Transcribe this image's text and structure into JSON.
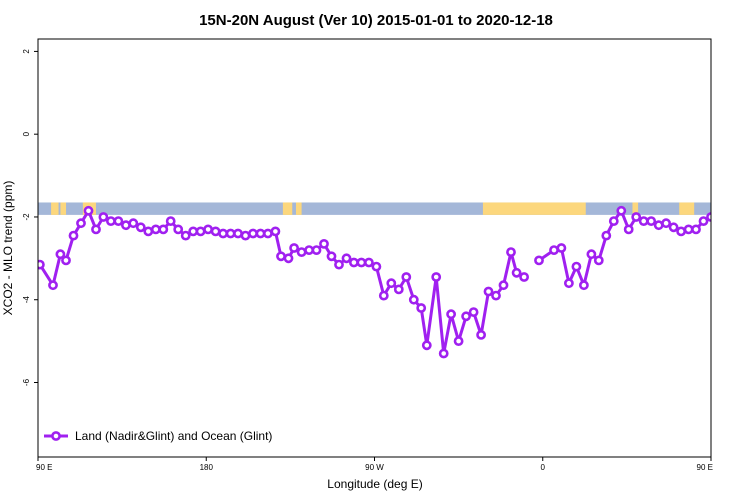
{
  "chart_data": {
    "type": "line",
    "title": "15N-20N August (Ver 10)   2015-01-01 to 2020-12-18",
    "xlabel": "Longitude (deg E)",
    "ylabel": "XCO2 - MLO trend (ppm)",
    "xlim": [
      90,
      450
    ],
    "ylim": [
      -7.8,
      2.3
    ],
    "x_ticks": [
      {
        "value": 90,
        "label": "90 E"
      },
      {
        "value": 180,
        "label": "180"
      },
      {
        "value": 270,
        "label": "90 W"
      },
      {
        "value": 360,
        "label": "0"
      },
      {
        "value": 450,
        "label": "90 E"
      },
      {
        "value": 540,
        "label": "180"
      }
    ],
    "y_ticks": [
      {
        "value": 2,
        "label": "2"
      },
      {
        "value": 0,
        "label": "0"
      },
      {
        "value": -2,
        "label": "-2"
      },
      {
        "value": -4,
        "label": "-4"
      },
      {
        "value": -6,
        "label": "-6"
      }
    ],
    "land_band": {
      "y_range": [
        -1.95,
        -1.65
      ],
      "ocean_color": "#a4b7d8",
      "land_color": "#fcd77d",
      "land_spans": [
        [
          97,
          101
        ],
        [
          102,
          105
        ],
        [
          114,
          118
        ],
        [
          115,
          121
        ],
        [
          221,
          224
        ],
        [
          223,
          226
        ],
        [
          228,
          231
        ],
        [
          328,
          383
        ],
        [
          374,
          381
        ],
        [
          408,
          411
        ],
        [
          433,
          441
        ],
        [
          450,
          458
        ],
        [
          468,
          472
        ],
        [
          484,
          486
        ]
      ]
    },
    "series": [
      {
        "name": "Land (Nadir&Glint) and Ocean (Glint)",
        "color": "#a020f0",
        "points": [
          [
            88,
            -3.2
          ],
          [
            91,
            -3.15
          ],
          [
            98,
            -3.65
          ],
          [
            102,
            -2.9
          ],
          [
            105,
            -3.05
          ],
          [
            109,
            -2.45
          ],
          [
            113,
            -2.15
          ],
          [
            117,
            -1.85
          ],
          [
            121,
            -2.3
          ],
          [
            125,
            -2.0
          ],
          [
            129,
            -2.1
          ],
          [
            133,
            -2.1
          ],
          [
            137,
            -2.2
          ],
          [
            141,
            -2.15
          ],
          [
            145,
            -2.25
          ],
          [
            149,
            -2.35
          ],
          [
            153,
            -2.3
          ],
          [
            157,
            -2.3
          ],
          [
            161,
            -2.1
          ],
          [
            165,
            -2.3
          ],
          [
            169,
            -2.45
          ],
          [
            173,
            -2.35
          ],
          [
            177,
            -2.35
          ],
          [
            181,
            -2.3
          ],
          [
            185,
            -2.35
          ],
          [
            189,
            -2.4
          ],
          [
            193,
            -2.4
          ],
          [
            197,
            -2.4
          ],
          [
            201,
            -2.45
          ],
          [
            205,
            -2.4
          ],
          [
            209,
            -2.4
          ],
          [
            213,
            -2.4
          ],
          [
            217,
            -2.35
          ],
          [
            220,
            -2.95
          ],
          [
            224,
            -3.0
          ],
          [
            227,
            -2.75
          ],
          [
            231,
            -2.85
          ],
          [
            235,
            -2.8
          ],
          [
            239,
            -2.8
          ],
          [
            243,
            -2.65
          ],
          [
            247,
            -2.95
          ],
          [
            251,
            -3.15
          ],
          [
            255,
            -3.0
          ],
          [
            259,
            -3.1
          ],
          [
            263,
            -3.1
          ],
          [
            267,
            -3.1
          ],
          [
            271,
            -3.2
          ],
          [
            275,
            -3.9
          ],
          [
            279,
            -3.6
          ],
          [
            283,
            -3.75
          ],
          [
            287,
            -3.45
          ],
          [
            291,
            -4.0
          ],
          [
            295,
            -4.2
          ],
          [
            298,
            -5.1
          ],
          [
            303,
            -3.45
          ],
          [
            307,
            -5.3
          ],
          [
            311,
            -4.35
          ],
          [
            315,
            -5.0
          ],
          [
            319,
            -4.4
          ],
          [
            323,
            -4.3
          ],
          [
            327,
            -4.85
          ],
          [
            331,
            -3.8
          ],
          [
            335,
            -3.9
          ],
          [
            339,
            -3.65
          ],
          [
            343,
            -2.85
          ],
          [
            346,
            -3.35
          ],
          [
            350,
            -3.45
          ],
          null,
          [
            358,
            -3.05
          ],
          [
            366,
            -2.8
          ],
          [
            370,
            -2.75
          ],
          [
            374,
            -3.6
          ],
          [
            378,
            -3.2
          ],
          [
            382,
            -3.65
          ],
          [
            386,
            -2.9
          ],
          [
            390,
            -3.05
          ],
          [
            394,
            -2.45
          ],
          [
            398,
            -2.1
          ],
          [
            402,
            -1.85
          ],
          [
            406,
            -2.3
          ],
          [
            410,
            -2.0
          ],
          [
            414,
            -2.1
          ],
          [
            418,
            -2.1
          ],
          [
            422,
            -2.2
          ],
          [
            426,
            -2.15
          ],
          [
            430,
            -2.25
          ],
          [
            434,
            -2.35
          ],
          [
            438,
            -2.3
          ],
          [
            442,
            -2.3
          ],
          [
            446,
            -2.1
          ],
          [
            450,
            -2.0
          ]
        ]
      }
    ],
    "legend": {
      "position": "bottom-left",
      "label": "Land (Nadir&Glint) and Ocean (Glint)"
    }
  }
}
